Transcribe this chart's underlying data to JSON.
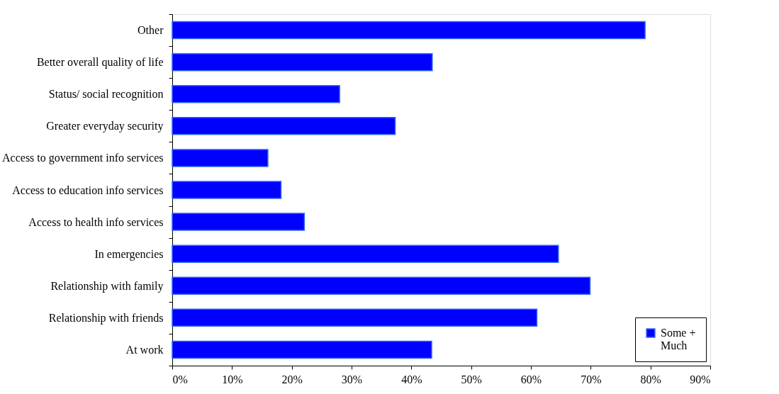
{
  "chart_data": {
    "type": "bar",
    "orientation": "horizontal",
    "categories": [
      "Other",
      "Better overall quality of life",
      "Status/ social recognition",
      "Greater everyday security",
      "Access to government info services",
      "Access to education info services",
      "Access to health info services",
      "In emergencies",
      "Relationship with family",
      "Relationship with friends",
      "At work"
    ],
    "series": [
      {
        "name": "Some + Much",
        "color": "#0000ff",
        "values": [
          79.1,
          43.5,
          28.0,
          37.3,
          16.0,
          18.2,
          22.1,
          64.6,
          69.9,
          61.0,
          43.4
        ]
      }
    ],
    "xlim": [
      0,
      90
    ],
    "xticks": [
      {
        "value": 0,
        "label": "0%"
      },
      {
        "value": 10,
        "label": "10%"
      },
      {
        "value": 20,
        "label": "20%"
      },
      {
        "value": 30,
        "label": "30%"
      },
      {
        "value": 40,
        "label": "40%"
      },
      {
        "value": 50,
        "label": "50%"
      },
      {
        "value": 60,
        "label": "60%"
      },
      {
        "value": 70,
        "label": "70%"
      },
      {
        "value": 80,
        "label": "80%"
      },
      {
        "value": 90,
        "label": "90%"
      }
    ],
    "grid": false,
    "legend": "bottom right"
  }
}
